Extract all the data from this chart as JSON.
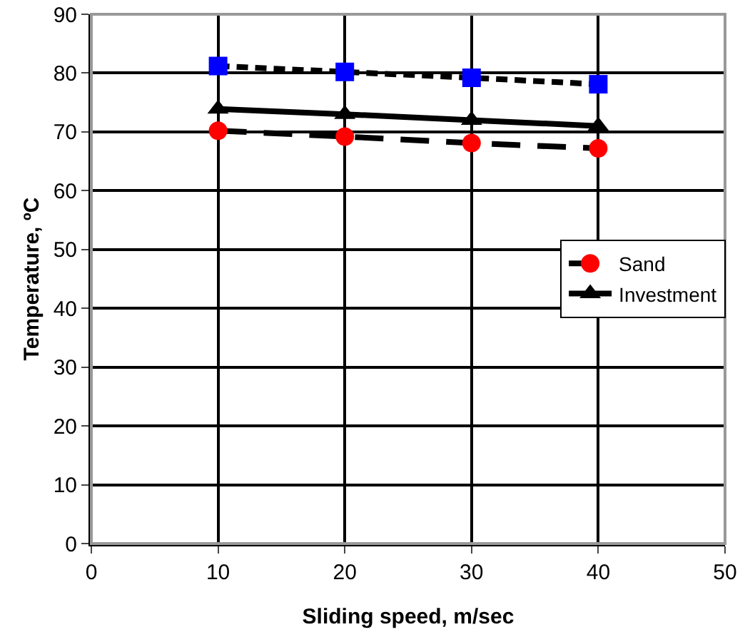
{
  "chart_data": {
    "type": "line",
    "xlabel": "Sliding speed, m/sec",
    "ylabel": "Temperature, ºC",
    "x": [
      10,
      20,
      30,
      40
    ],
    "series": [
      {
        "color": "#0000ff",
        "values": [
          81.2,
          80.2,
          79.2,
          78.1
        ],
        "marker": "square",
        "line_style": "dashed"
      },
      {
        "name": "Investment",
        "color": "#000000",
        "values": [
          73.9,
          73,
          72,
          71
        ],
        "marker": "triangle",
        "line_style": "solid"
      },
      {
        "name": "Sand",
        "color": "#ff0000",
        "values": [
          70.2,
          69.2,
          68.1,
          67.2
        ],
        "marker": "circle",
        "line_style": "dashed"
      }
    ],
    "xlim": [
      0,
      50
    ],
    "xticks": [
      0,
      10,
      20,
      30,
      40,
      50
    ],
    "ylim": [
      0,
      90
    ],
    "yticks": [
      0,
      10,
      20,
      30,
      40,
      50,
      60,
      70,
      80,
      90
    ],
    "grid": true,
    "legend": "right"
  }
}
